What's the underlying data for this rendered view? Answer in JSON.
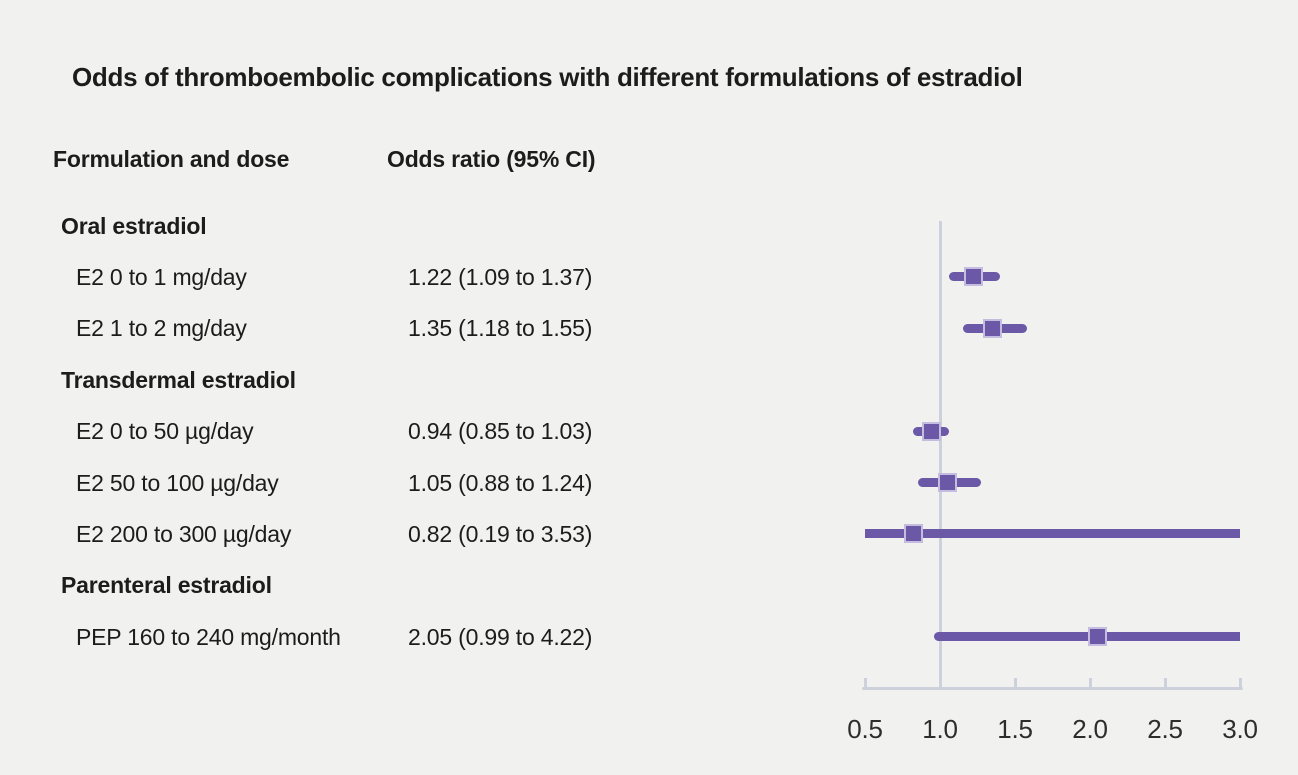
{
  "title": "Odds of thromboembolic complications with different formulations of estradiol",
  "columns": {
    "formulation": "Formulation and dose",
    "odds_ratio": "Odds ratio (95% CI)"
  },
  "chart_data": {
    "type": "forest",
    "title": "Odds of thromboembolic complications with different formulations of estradiol",
    "xlabel": "",
    "xlim": [
      0.5,
      3.0
    ],
    "x_ticks": [
      0.5,
      1.0,
      1.5,
      2.0,
      2.5,
      3.0
    ],
    "x_tick_labels": [
      "0.5",
      "1.0",
      "1.5",
      "2.0",
      "2.5",
      "3.0"
    ],
    "reference_value": 1.0,
    "grid": false,
    "legend": "none",
    "rows": [
      {
        "type": "group",
        "label": "Oral estradiol"
      },
      {
        "type": "item",
        "label": "E2 0 to 1 mg/day",
        "value_text": "1.22 (1.09 to 1.37)",
        "or": 1.22,
        "ci_low": 1.09,
        "ci_high": 1.37
      },
      {
        "type": "item",
        "label": "E2 1 to 2 mg/day",
        "value_text": "1.35 (1.18 to 1.55)",
        "or": 1.35,
        "ci_low": 1.18,
        "ci_high": 1.55
      },
      {
        "type": "group",
        "label": "Transdermal estradiol"
      },
      {
        "type": "item",
        "label": "E2 0 to 50 µg/day",
        "value_text": "0.94 (0.85 to 1.03)",
        "or": 0.94,
        "ci_low": 0.85,
        "ci_high": 1.03
      },
      {
        "type": "item",
        "label": "E2 50 to 100 µg/day",
        "value_text": "1.05 (0.88 to 1.24)",
        "or": 1.05,
        "ci_low": 0.88,
        "ci_high": 1.24
      },
      {
        "type": "item",
        "label": "E2 200 to 300 µg/day",
        "value_text": "0.82 (0.19 to 3.53)",
        "or": 0.82,
        "ci_low": 0.19,
        "ci_high": 3.53
      },
      {
        "type": "group",
        "label": "Parenteral estradiol"
      },
      {
        "type": "item",
        "label": "PEP 160 to 240 mg/month",
        "value_text": "2.05 (0.99 to 4.22)",
        "or": 2.05,
        "ci_low": 0.99,
        "ci_high": 4.22
      }
    ]
  },
  "colors": {
    "background": "#f1f1ef",
    "text": "#1c1c1c",
    "axis": "#cdd1dc",
    "ci_line": "#6b58a7",
    "marker_fill": "#6b58a7",
    "marker_border": "#c5bde0"
  }
}
